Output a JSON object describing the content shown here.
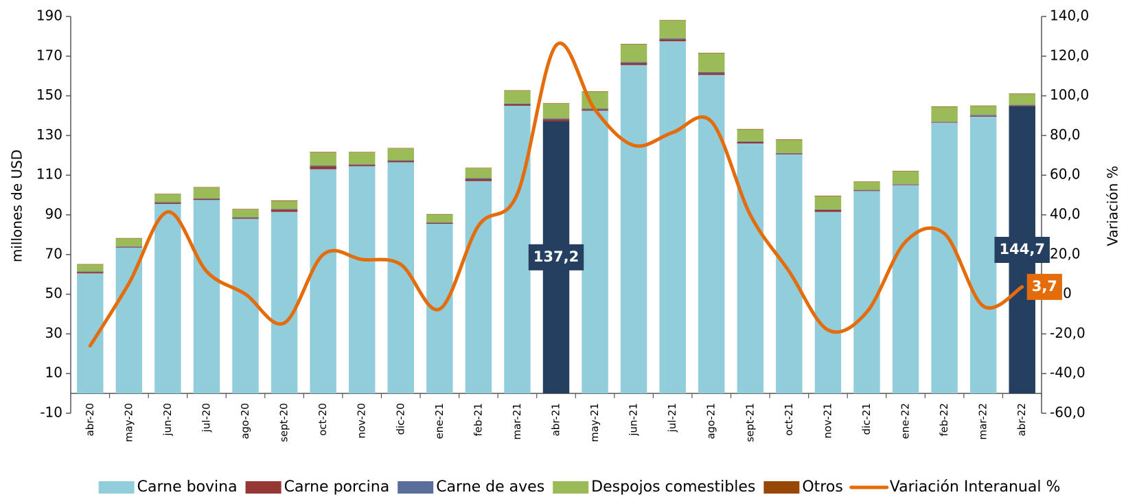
{
  "chart_data": {
    "type": "bar",
    "stacked": true,
    "y_label": "millones de  USD",
    "y2_label": "Variación %",
    "categories": [
      "abr-20",
      "may-20",
      "jun-20",
      "jul-20",
      "ago-20",
      "sept-20",
      "oct-20",
      "nov-20",
      "dic-20",
      "ene-21",
      "feb-21",
      "mar-21",
      "abr-21",
      "may-21",
      "jun-21",
      "jul-21",
      "ago-21",
      "sept-21",
      "oct-21",
      "nov-21",
      "dic-21",
      "ene-22",
      "feb-22",
      "mar-22",
      "abr-22"
    ],
    "highlight_indices": [
      12,
      24
    ],
    "highlight_color": "#243f60",
    "series": [
      {
        "name": "Carne bovina",
        "color": "#92cddc",
        "values": [
          60.5,
          73.5,
          95.5,
          97.5,
          88,
          91.5,
          113,
          114.5,
          116.5,
          85.5,
          107,
          145,
          137.2,
          142.5,
          165.5,
          177.5,
          160.5,
          126,
          120.5,
          91.5,
          102,
          105,
          136.5,
          139.5,
          144.7
        ],
        "value_labels": [
          null,
          null,
          null,
          null,
          null,
          null,
          null,
          null,
          null,
          null,
          null,
          null,
          "137,2",
          null,
          null,
          null,
          null,
          null,
          null,
          null,
          null,
          null,
          null,
          null,
          "144,7"
        ]
      },
      {
        "name": "Carne porcina",
        "color": "#953735",
        "values": [
          0.7,
          0.3,
          0.6,
          0.5,
          0.5,
          1.2,
          1.5,
          0.7,
          0.7,
          0.4,
          1,
          0.7,
          1,
          0.7,
          1,
          1,
          1,
          0.7,
          0.4,
          1,
          0.4,
          0.3,
          0.3,
          0.4,
          0.4
        ]
      },
      {
        "name": "Carne de aves",
        "color": "#5a6e9b",
        "values": [
          0.3,
          0.3,
          0.3,
          0.3,
          0.3,
          0.3,
          0.4,
          0.3,
          0.3,
          0.3,
          0.5,
          0.4,
          0.4,
          0.4,
          0.5,
          0.5,
          0.5,
          0.4,
          0.3,
          0.3,
          0.2,
          0.2,
          0.2,
          0.5,
          0.4
        ]
      },
      {
        "name": "Despojos comestibles",
        "color": "#9bbb59",
        "values": [
          3.5,
          4,
          4,
          5.5,
          4,
          4,
          6.5,
          6,
          6,
          4,
          5,
          6.5,
          7.5,
          8.5,
          9,
          9,
          9.5,
          6,
          6.5,
          6.5,
          4,
          6.5,
          7.5,
          4.5,
          5.5
        ]
      },
      {
        "name": "Otros",
        "color": "#974706",
        "values": [
          0.2,
          0.2,
          0.2,
          0.2,
          0.2,
          0.3,
          0.3,
          0.2,
          0.2,
          0.2,
          0.2,
          0.2,
          0.2,
          0.2,
          0.2,
          0.2,
          0.2,
          0.2,
          0.3,
          0.3,
          0.2,
          0.2,
          0.2,
          0.2,
          0.2
        ]
      },
      {
        "name": "Variación Interanual %",
        "type": "line",
        "axis": "y2",
        "color": "#e46c0a",
        "values": [
          -26,
          5.5,
          41.5,
          11.5,
          0,
          -14.5,
          20,
          17.5,
          15,
          -7.5,
          34.5,
          50.5,
          125.5,
          93,
          75,
          81.5,
          87,
          40,
          11.5,
          -18,
          -9,
          26.5,
          30.5,
          -6,
          3.7
        ],
        "value_labels": [
          null,
          null,
          null,
          null,
          null,
          null,
          null,
          null,
          null,
          null,
          null,
          null,
          null,
          null,
          null,
          null,
          null,
          null,
          null,
          null,
          null,
          null,
          null,
          null,
          "3,7"
        ]
      }
    ],
    "ylim": [
      -10,
      190
    ],
    "yticks": [
      -10,
      10,
      30,
      50,
      70,
      90,
      110,
      130,
      150,
      170,
      190
    ],
    "y2lim": [
      -60,
      140
    ],
    "y2ticks": [
      {
        "value": -60,
        "label": "-60,0"
      },
      {
        "value": -40,
        "label": "-40,0"
      },
      {
        "value": -20,
        "label": "-20,0"
      },
      {
        "value": 0,
        "label": "0,0"
      },
      {
        "value": 20,
        "label": "20,0"
      },
      {
        "value": 40,
        "label": "40,0"
      },
      {
        "value": 60,
        "label": "60,0"
      },
      {
        "value": 80,
        "label": "80,0"
      },
      {
        "value": 100,
        "label": "100,0"
      },
      {
        "value": 120,
        "label": "120,0"
      },
      {
        "value": 140,
        "label": "140,0"
      }
    ],
    "grid": false,
    "legend": "bottom"
  }
}
